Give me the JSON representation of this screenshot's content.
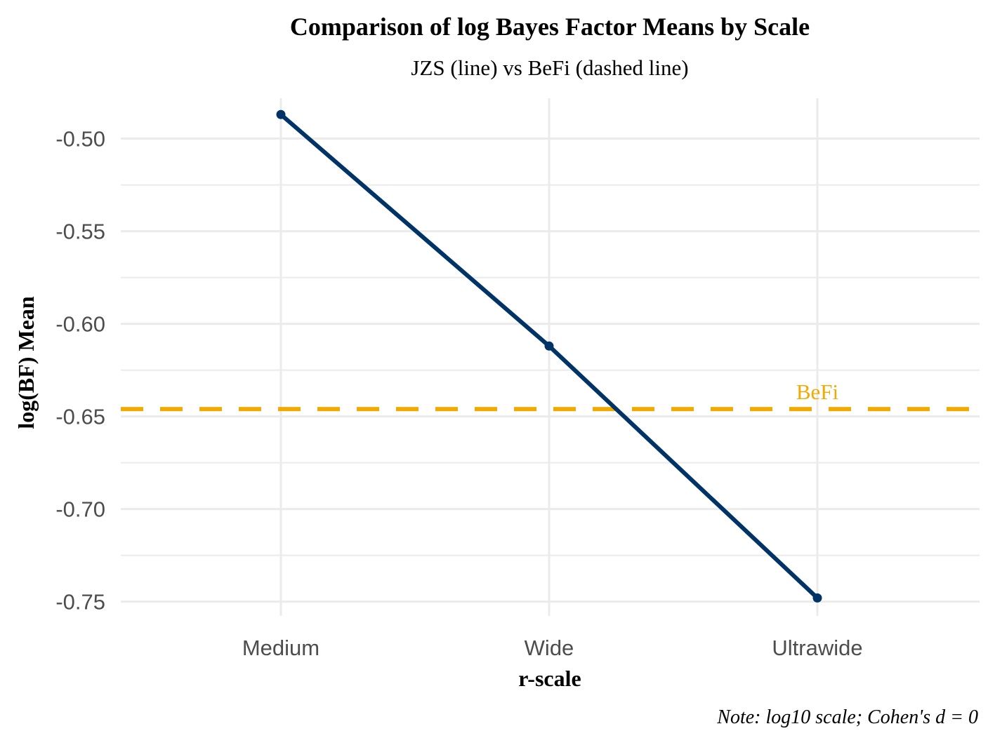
{
  "chart_data": {
    "type": "line",
    "title": "Comparison of log Bayes Factor Means by Scale",
    "subtitle": "JZS (line) vs BeFi (dashed line)",
    "xlabel": "r-scale",
    "ylabel": "log(BF) Mean",
    "caption": "Note: log10 scale; Cohen's d = 0",
    "categories": [
      "Medium",
      "Wide",
      "Ultrawide"
    ],
    "series": [
      {
        "values": [
          -0.487,
          -0.612,
          -0.748
        ],
        "color": "#003366"
      }
    ],
    "reference_line": {
      "label": "BeFi",
      "value": -0.646,
      "color": "#F2A900",
      "style": "dashed"
    },
    "yticks": [
      -0.5,
      -0.55,
      -0.6,
      -0.65,
      -0.7,
      -0.75
    ],
    "ytick_labels": [
      "-0.50",
      "-0.55",
      "-0.60",
      "-0.65",
      "-0.70",
      "-0.75"
    ],
    "ylim": [
      -0.7577,
      -0.4782
    ],
    "grid": true,
    "gridline_color": "#ebebeb"
  }
}
